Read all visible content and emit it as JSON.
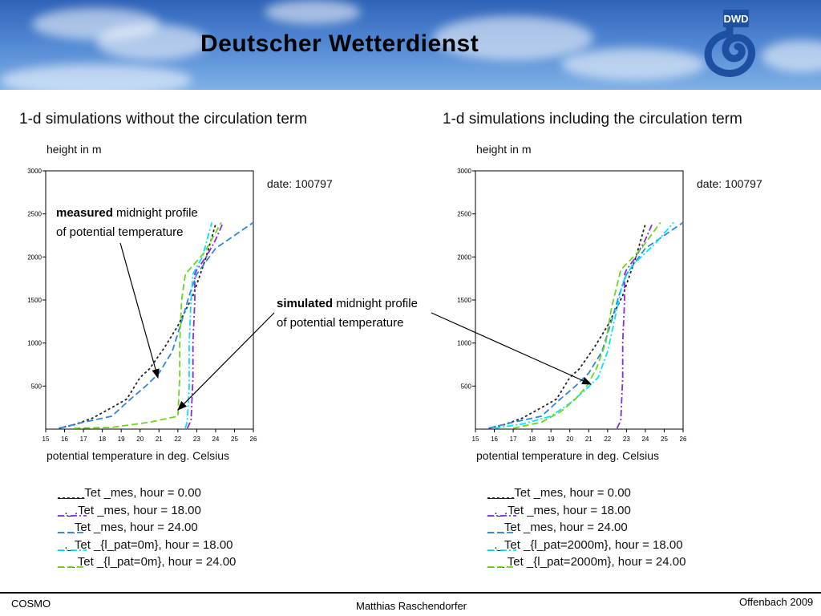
{
  "header": {
    "title": "Deutscher Wetterdienst",
    "logo_text": "DWD"
  },
  "annotations": {
    "measured_bold": "measured",
    "measured_rest": "midnight profile",
    "measured_line2": "of  potential temperature",
    "simulated_bold": "simulated",
    "simulated_rest": "midnight profile",
    "simulated_line2": "of  potential temperature"
  },
  "footer": {
    "left": "COSMO",
    "center": "Matthias Raschendorfer",
    "right": "Offenbach 2009"
  },
  "chart_data": [
    {
      "type": "line",
      "title": "1-d simulations without the circulation term",
      "ylabel": "height in m",
      "xlabel": "potential temperature in deg. Celsius",
      "date_label": "date:  100797",
      "xlim": [
        15,
        26
      ],
      "ylim": [
        0,
        3000
      ],
      "x_ticks": [
        "15",
        "16",
        "17",
        "18",
        "19",
        "20",
        "21",
        "22",
        "23",
        "24",
        "25",
        "26"
      ],
      "y_ticks": [
        "500",
        "1000",
        "1500",
        "2000",
        "2500",
        "3000"
      ],
      "series": [
        {
          "name": "____Tet _mes, hour  =  0.00",
          "color": "#222222",
          "dash": "3,3",
          "x": [
            15.7,
            16.5,
            17.5,
            18.5,
            19.3,
            20.0,
            20.5,
            21.3,
            22.0,
            22.8,
            23.5,
            24.0
          ],
          "y": [
            10,
            50,
            130,
            250,
            350,
            600,
            700,
            950,
            1200,
            1550,
            2000,
            2380
          ]
        },
        {
          "name": "_._.Tet _mes, hour  = 18.00",
          "color": "#8a2be2",
          "dash": "8,3,2,3",
          "x": [
            22.5,
            22.7,
            22.8,
            22.8,
            22.9,
            22.9,
            23.0,
            23.5,
            24.0,
            24.4
          ],
          "y": [
            10,
            100,
            600,
            1000,
            1500,
            1800,
            1850,
            2000,
            2200,
            2400
          ]
        },
        {
          "name": "_ _Tet _mes, hour  = 24.00",
          "color": "#2e86de",
          "dash": "8,4",
          "x": [
            15.7,
            17.0,
            18.5,
            19.5,
            20.3,
            21.0,
            21.7,
            22.2,
            22.6,
            23.0,
            24.0,
            26.0
          ],
          "y": [
            10,
            80,
            150,
            350,
            500,
            650,
            900,
            1250,
            1550,
            1800,
            2100,
            2400
          ]
        },
        {
          "name": "_._Tet _{l_pat=0m}, hour  = 18.00",
          "color": "#00e5ff",
          "dash": "8,3,2,3",
          "x": [
            22.4,
            22.5,
            22.6,
            22.6,
            22.7,
            22.8,
            23.3,
            23.8
          ],
          "y": [
            10,
            100,
            500,
            1000,
            1500,
            1800,
            2000,
            2400
          ]
        },
        {
          "name": "_ _ Tet _{l_pat=0m}, hour  = 24.00",
          "color": "#6bd61a",
          "dash": "8,4",
          "x": [
            16.5,
            18.5,
            20.5,
            22.0,
            22.1,
            22.1,
            22.2,
            22.4,
            23.4,
            24.3
          ],
          "y": [
            10,
            20,
            80,
            150,
            600,
            1000,
            1500,
            1800,
            2050,
            2400
          ]
        }
      ]
    },
    {
      "type": "line",
      "title": "1-d simulations including the circulation term",
      "ylabel": "height in m",
      "xlabel": "potential temperature in deg. Celsius",
      "date_label": "date:  100797",
      "xlim": [
        15,
        26
      ],
      "ylim": [
        0,
        3000
      ],
      "x_ticks": [
        "15",
        "16",
        "17",
        "18",
        "19",
        "20",
        "21",
        "22",
        "23",
        "24",
        "25",
        "26"
      ],
      "y_ticks": [
        "500",
        "1000",
        "1500",
        "2000",
        "2500",
        "3000"
      ],
      "series": [
        {
          "name": "____Tet _mes, hour  =  0.00",
          "color": "#222222",
          "dash": "3,3",
          "x": [
            15.7,
            16.5,
            17.5,
            18.5,
            19.3,
            20.0,
            20.5,
            21.3,
            22.0,
            22.8,
            23.5,
            24.0
          ],
          "y": [
            10,
            50,
            130,
            250,
            350,
            600,
            700,
            950,
            1200,
            1550,
            2000,
            2380
          ]
        },
        {
          "name": "_._.Tet _mes, hour  = 18.00",
          "color": "#8a2be2",
          "dash": "8,3,2,3",
          "x": [
            22.5,
            22.7,
            22.8,
            22.8,
            22.9,
            22.9,
            23.0,
            23.5,
            24.0,
            24.4
          ],
          "y": [
            10,
            100,
            600,
            1000,
            1500,
            1800,
            1850,
            2000,
            2200,
            2400
          ]
        },
        {
          "name": "_ _Tet _mes, hour  = 24.00",
          "color": "#2e86de",
          "dash": "8,4",
          "x": [
            15.7,
            17.0,
            18.5,
            19.5,
            20.3,
            21.0,
            21.7,
            22.2,
            22.6,
            23.0,
            24.0,
            26.0
          ],
          "y": [
            10,
            80,
            150,
            350,
            500,
            650,
            900,
            1250,
            1550,
            1800,
            2100,
            2400
          ]
        },
        {
          "name": "_._Tet _{l_pat=2000m}, hour  = 18.00",
          "color": "#00e5ff",
          "dash": "8,3,2,3",
          "x": [
            16.0,
            17.5,
            19.0,
            20.0,
            20.8,
            21.5,
            22.0,
            22.4,
            22.8,
            23.3,
            24.5,
            25.5
          ],
          "y": [
            10,
            60,
            150,
            300,
            450,
            600,
            900,
            1300,
            1700,
            1900,
            2150,
            2400
          ]
        },
        {
          "name": "_ _ Tet _{l_pat=2000m}, hour  = 24.00",
          "color": "#6bd61a",
          "dash": "8,4",
          "x": [
            17.0,
            18.5,
            19.5,
            20.3,
            20.9,
            21.4,
            21.9,
            22.2,
            22.7,
            23.8,
            24.8
          ],
          "y": [
            10,
            80,
            200,
            350,
            500,
            700,
            1000,
            1400,
            1850,
            2100,
            2400
          ]
        }
      ]
    }
  ]
}
